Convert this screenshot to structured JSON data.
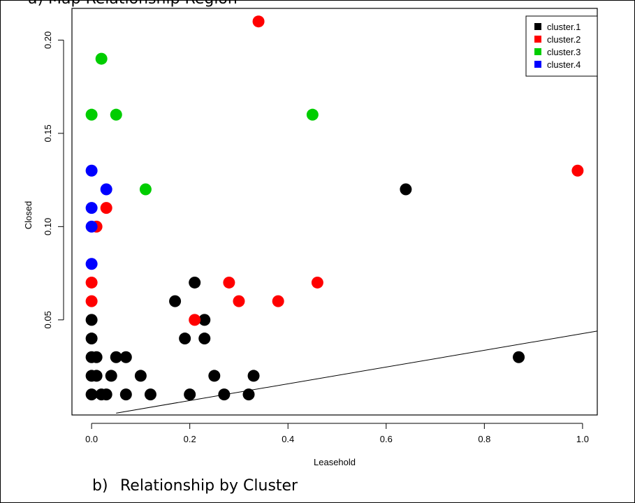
{
  "caption": {
    "number": "b)",
    "text": "Relationship by Cluster",
    "top_partial": "a)   Map Relationship Region"
  },
  "chart_data": {
    "type": "scatter",
    "title": "",
    "xlabel": "Leasehold",
    "ylabel": "Closed",
    "xlim": [
      -0.04,
      1.03
    ],
    "ylim": [
      -0.001,
      0.217
    ],
    "x_ticks": [
      0.0,
      0.2,
      0.4,
      0.6,
      0.8,
      1.0
    ],
    "x_tick_labels": [
      "0.0",
      "0.2",
      "0.4",
      "0.6",
      "0.8",
      "1.0"
    ],
    "y_ticks": [
      0.05,
      0.1,
      0.15,
      0.2
    ],
    "y_tick_labels": [
      "0.05",
      "0.10",
      "0.15",
      "0.20"
    ],
    "legend_position": "top-right",
    "grid": false,
    "reference_line": {
      "x": [
        0.05,
        1.03
      ],
      "y": [
        0.0,
        0.044
      ]
    },
    "series": [
      {
        "name": "cluster.1",
        "color": "#000000",
        "points": [
          [
            0.64,
            0.12
          ],
          [
            0.21,
            0.07
          ],
          [
            0.17,
            0.06
          ],
          [
            0.23,
            0.05
          ],
          [
            0.19,
            0.04
          ],
          [
            0.23,
            0.04
          ],
          [
            0.0,
            0.05
          ],
          [
            0.0,
            0.04
          ],
          [
            0.0,
            0.03
          ],
          [
            0.01,
            0.03
          ],
          [
            0.05,
            0.03
          ],
          [
            0.07,
            0.03
          ],
          [
            0.0,
            0.02
          ],
          [
            0.01,
            0.02
          ],
          [
            0.04,
            0.02
          ],
          [
            0.1,
            0.02
          ],
          [
            0.25,
            0.02
          ],
          [
            0.33,
            0.02
          ],
          [
            0.0,
            0.01
          ],
          [
            0.02,
            0.01
          ],
          [
            0.03,
            0.01
          ],
          [
            0.07,
            0.01
          ],
          [
            0.12,
            0.01
          ],
          [
            0.2,
            0.01
          ],
          [
            0.27,
            0.01
          ],
          [
            0.32,
            0.01
          ],
          [
            0.87,
            0.03
          ]
        ]
      },
      {
        "name": "cluster.2",
        "color": "#ff0000",
        "points": [
          [
            0.34,
            0.21
          ],
          [
            0.99,
            0.13
          ],
          [
            0.03,
            0.11
          ],
          [
            0.01,
            0.1
          ],
          [
            0.0,
            0.07
          ],
          [
            0.28,
            0.07
          ],
          [
            0.46,
            0.07
          ],
          [
            0.0,
            0.06
          ],
          [
            0.3,
            0.06
          ],
          [
            0.38,
            0.06
          ],
          [
            0.21,
            0.05
          ]
        ]
      },
      {
        "name": "cluster.3",
        "color": "#00cd00",
        "points": [
          [
            0.02,
            0.19
          ],
          [
            0.0,
            0.16
          ],
          [
            0.05,
            0.16
          ],
          [
            0.45,
            0.16
          ],
          [
            0.11,
            0.12
          ]
        ]
      },
      {
        "name": "cluster.4",
        "color": "#0000ff",
        "points": [
          [
            0.0,
            0.13
          ],
          [
            0.03,
            0.12
          ],
          [
            0.0,
            0.11
          ],
          [
            0.0,
            0.1
          ],
          [
            0.0,
            0.08
          ]
        ]
      }
    ]
  }
}
